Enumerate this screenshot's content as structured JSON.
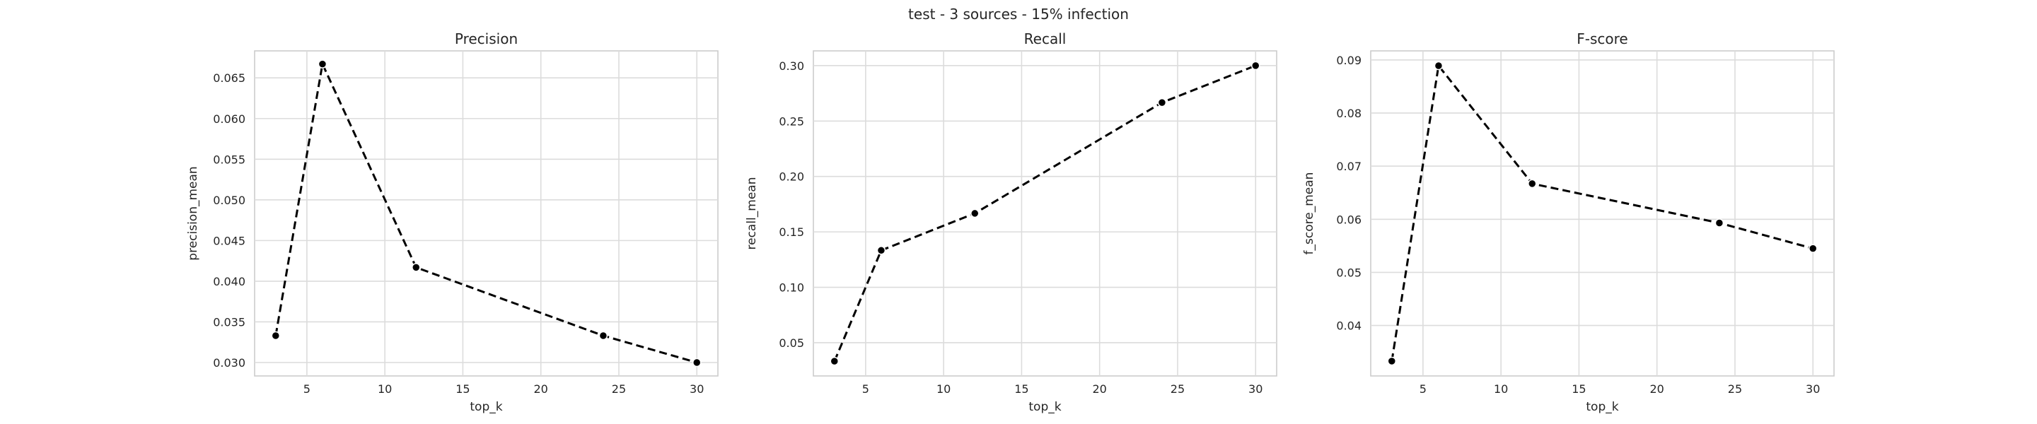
{
  "suptitle": "test - 3 sources - 15% infection",
  "chart_data": [
    {
      "type": "line",
      "title": "Precision",
      "xlabel": "top_k",
      "ylabel": "precision_mean",
      "x": [
        3,
        6,
        12,
        24,
        30
      ],
      "series": [
        {
          "values": [
            0.0333,
            0.0667,
            0.0417,
            0.0333,
            0.03
          ],
          "color": "#000000",
          "style": "dashed",
          "marker": "o"
        }
      ],
      "xlim": [
        1.65,
        31.35
      ],
      "ylim": [
        0.02835,
        0.06832
      ],
      "xticks": [
        5,
        10,
        15,
        20,
        25,
        30
      ],
      "xtick_labels": [
        "5",
        "10",
        "15",
        "20",
        "25",
        "30"
      ],
      "yticks": [
        0.03,
        0.035,
        0.04,
        0.045,
        0.05,
        0.055,
        0.06,
        0.065
      ],
      "ytick_labels": [
        "0.030",
        "0.035",
        "0.040",
        "0.045",
        "0.050",
        "0.055",
        "0.060",
        "0.065"
      ],
      "grid": true
    },
    {
      "type": "line",
      "title": "Recall",
      "xlabel": "top_k",
      "ylabel": "recall_mean",
      "x": [
        3,
        6,
        12,
        24,
        30
      ],
      "series": [
        {
          "values": [
            0.0333,
            0.1333,
            0.1667,
            0.2667,
            0.3
          ],
          "color": "#000000",
          "style": "dashed",
          "marker": "o"
        }
      ],
      "xlim": [
        1.65,
        31.35
      ],
      "ylim": [
        0.02,
        0.3133
      ],
      "xticks": [
        5,
        10,
        15,
        20,
        25,
        30
      ],
      "xtick_labels": [
        "5",
        "10",
        "15",
        "20",
        "25",
        "30"
      ],
      "yticks": [
        0.05,
        0.1,
        0.15,
        0.2,
        0.25,
        0.3
      ],
      "ytick_labels": [
        "0.05",
        "0.10",
        "0.15",
        "0.20",
        "0.25",
        "0.30"
      ],
      "grid": true
    },
    {
      "type": "line",
      "title": "F-score",
      "xlabel": "top_k",
      "ylabel": "f_score_mean",
      "x": [
        3,
        6,
        12,
        24,
        30
      ],
      "series": [
        {
          "values": [
            0.0333,
            0.0889,
            0.0667,
            0.0593,
            0.0545
          ],
          "color": "#000000",
          "style": "dashed",
          "marker": "o"
        }
      ],
      "xlim": [
        1.65,
        31.35
      ],
      "ylim": [
        0.0305,
        0.0917
      ],
      "xticks": [
        5,
        10,
        15,
        20,
        25,
        30
      ],
      "xtick_labels": [
        "5",
        "10",
        "15",
        "20",
        "25",
        "30"
      ],
      "yticks": [
        0.04,
        0.05,
        0.06,
        0.07,
        0.08,
        0.09
      ],
      "ytick_labels": [
        "0.04",
        "0.05",
        "0.06",
        "0.07",
        "0.08",
        "0.09"
      ],
      "grid": true
    }
  ]
}
